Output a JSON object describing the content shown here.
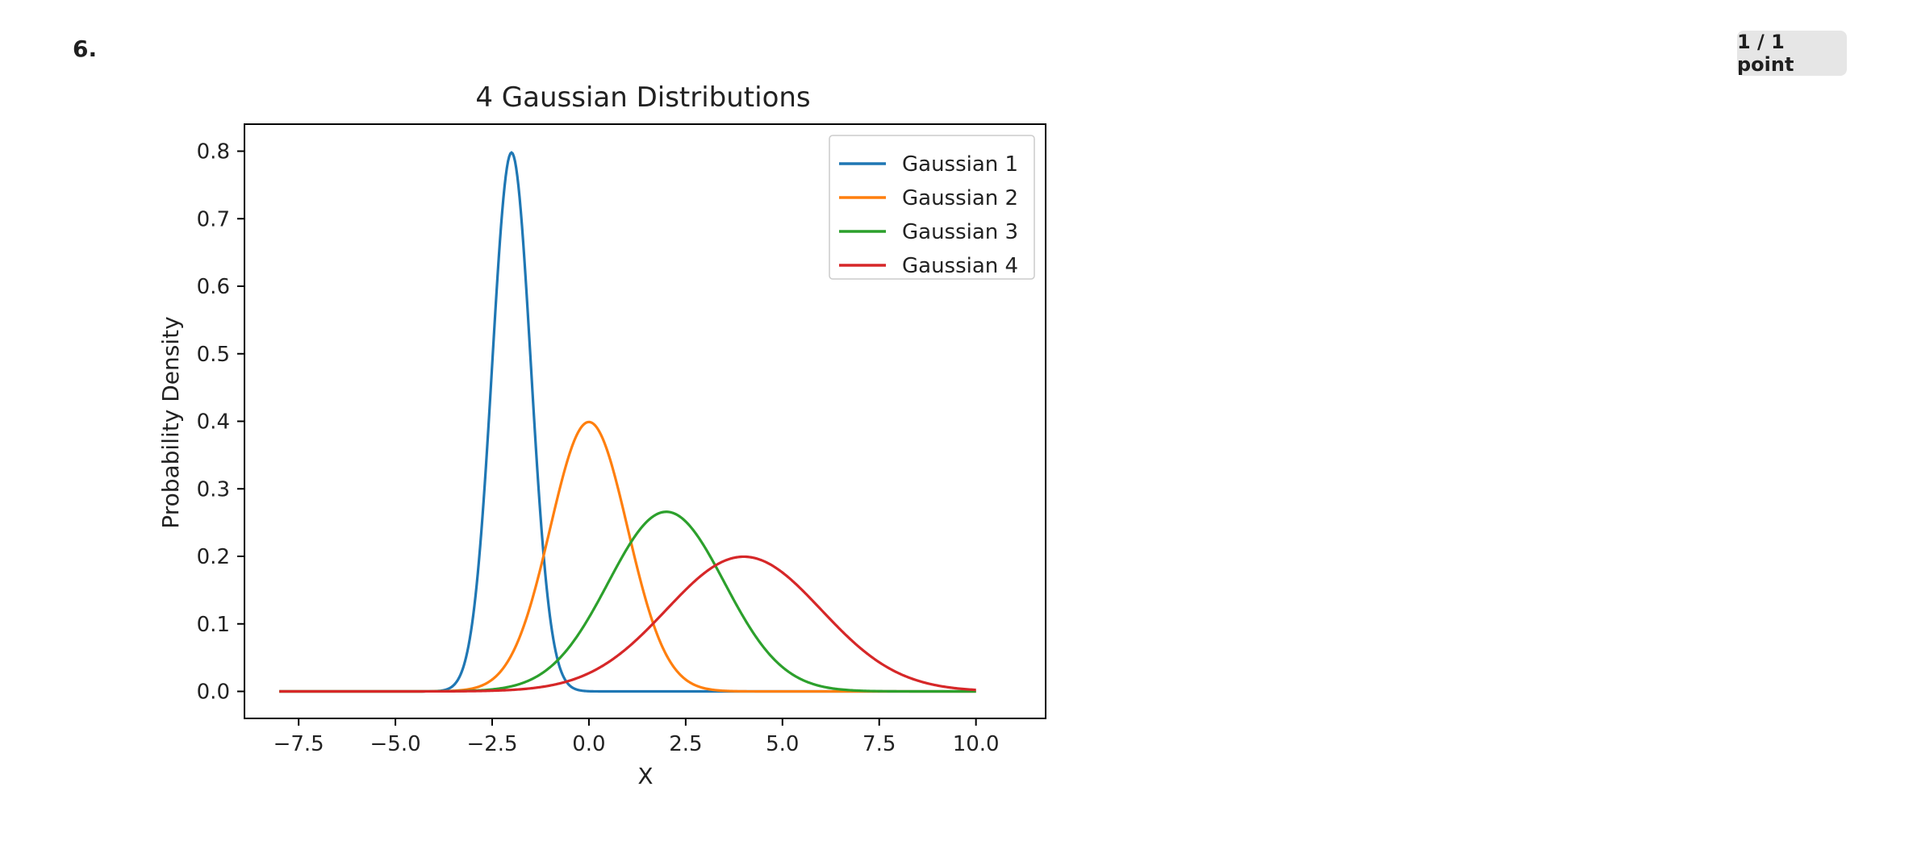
{
  "question": {
    "number": "6.",
    "score": "1 / 1 point"
  },
  "chart_data": {
    "type": "line",
    "title": "4 Gaussian Distributions",
    "xlabel": "X",
    "ylabel": "Probability Density",
    "xlim": [
      -8.9,
      11.8
    ],
    "ylim": [
      -0.04,
      0.84
    ],
    "x_range": [
      -8,
      10
    ],
    "xticks": [
      -7.5,
      -5.0,
      -2.5,
      0.0,
      2.5,
      5.0,
      7.5,
      10.0
    ],
    "xtick_labels": [
      "−7.5",
      "−5.0",
      "−2.5",
      "0.0",
      "2.5",
      "5.0",
      "7.5",
      "10.0"
    ],
    "yticks": [
      0.0,
      0.1,
      0.2,
      0.3,
      0.4,
      0.5,
      0.6,
      0.7,
      0.8
    ],
    "ytick_labels": [
      "0.0",
      "0.1",
      "0.2",
      "0.3",
      "0.4",
      "0.5",
      "0.6",
      "0.7",
      "0.8"
    ],
    "grid": false,
    "legend_position": "top-right",
    "series": [
      {
        "name": "Gaussian 1",
        "mean": -2,
        "std": 0.5,
        "color": "#1f77b4"
      },
      {
        "name": "Gaussian 2",
        "mean": 0,
        "std": 1.0,
        "color": "#ff7f0e"
      },
      {
        "name": "Gaussian 3",
        "mean": 2,
        "std": 1.5,
        "color": "#2ca02c"
      },
      {
        "name": "Gaussian 4",
        "mean": 4,
        "std": 2.0,
        "color": "#d62728"
      }
    ]
  }
}
